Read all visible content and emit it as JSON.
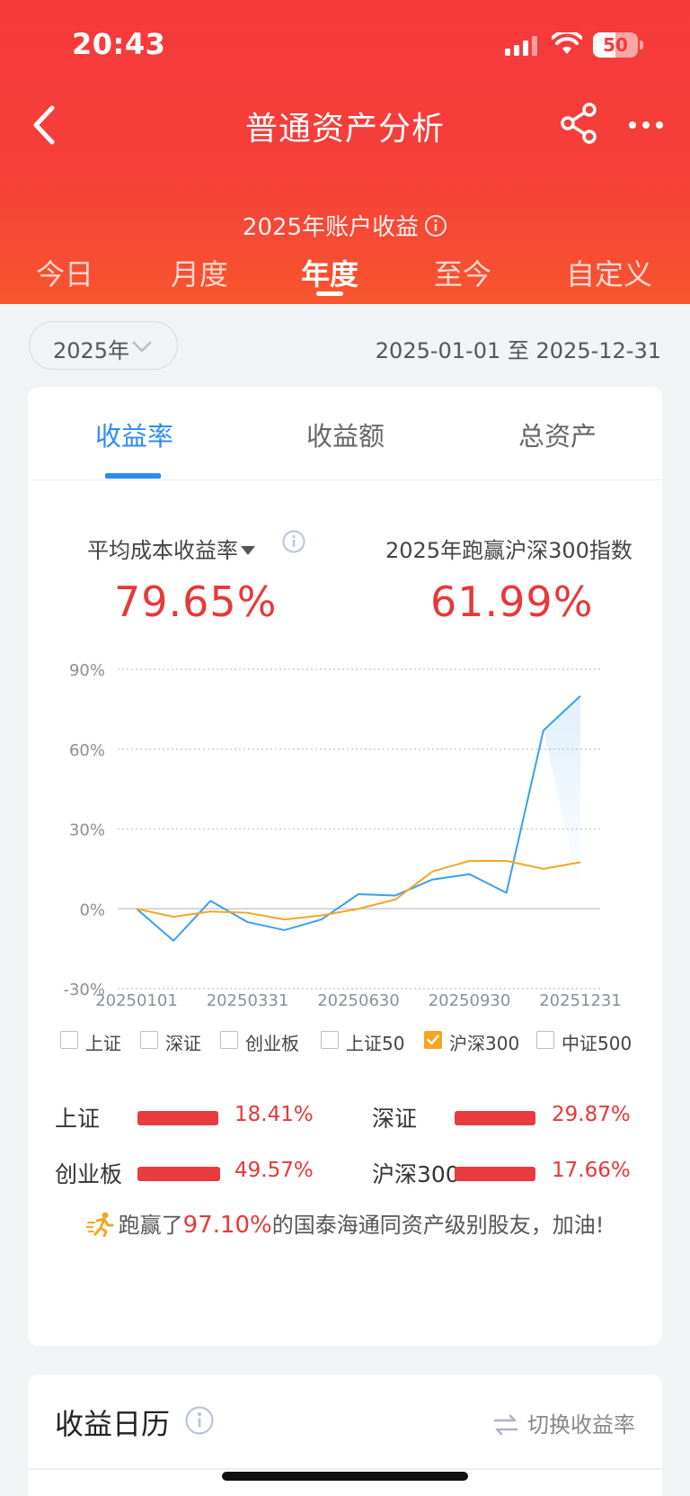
{
  "status_bar": {
    "time": "20:43",
    "battery": "50",
    "battery_level": 0.5
  },
  "nav": {
    "title": "普通资产分析"
  },
  "header": {
    "subtitle": "2025年账户收益",
    "period_tabs": [
      {
        "label": "今日",
        "active": false
      },
      {
        "label": "月度",
        "active": false
      },
      {
        "label": "年度",
        "active": true
      },
      {
        "label": "至今",
        "active": false
      },
      {
        "label": "自定义",
        "active": false
      }
    ]
  },
  "filter": {
    "year": "2025年",
    "date_range": "2025-01-01 至 2025-12-31"
  },
  "card": {
    "metric_tabs": [
      {
        "label": "收益率",
        "active": true
      },
      {
        "label": "收益额",
        "active": false
      },
      {
        "label": "总资产",
        "active": false
      }
    ],
    "stat_left_label": "平均成本收益率",
    "stat_left_value": "79.65%",
    "stat_right_label": "2025年跑赢沪深300指数",
    "stat_right_value": "61.99%"
  },
  "chart_data": {
    "type": "line",
    "x": [
      "20250101",
      "20250201",
      "20250301",
      "20250331",
      "20250501",
      "20250601",
      "20250630",
      "20250801",
      "20250901",
      "20250930",
      "20251101",
      "20251201",
      "20251231"
    ],
    "x_tick_labels": [
      "20250101",
      "20250331",
      "20250630",
      "20250930",
      "20251231"
    ],
    "y_tick_labels": [
      "90%",
      "60%",
      "30%",
      "0%",
      "-30%"
    ],
    "ylim": [
      -30,
      90
    ],
    "y_ticks": [
      90,
      60,
      30,
      0,
      -30
    ],
    "grid": true,
    "series": [
      {
        "color": "#3aa0e8",
        "values": [
          0,
          -12,
          3,
          -5,
          -8,
          -4,
          5.5,
          5.0,
          11,
          13,
          6,
          67,
          80
        ]
      },
      {
        "color": "#f5a623",
        "values": [
          0,
          -3,
          -1,
          -1.5,
          -4,
          -2.5,
          0,
          3.5,
          14,
          18,
          18,
          15,
          17.5
        ]
      }
    ]
  },
  "legend": [
    {
      "label": "上证",
      "checked": false
    },
    {
      "label": "深证",
      "checked": false
    },
    {
      "label": "创业板",
      "checked": false
    },
    {
      "label": "上证50",
      "checked": false
    },
    {
      "label": "沪深300",
      "checked": true
    },
    {
      "label": "中证500",
      "checked": false
    }
  ],
  "index_returns": [
    {
      "name": "上证",
      "value": "18.41%"
    },
    {
      "name": "深证",
      "value": "29.87%"
    },
    {
      "name": "创业板",
      "value": "49.57%"
    },
    {
      "name": "沪深300",
      "value": "17.66%"
    }
  ],
  "beat": {
    "prefix": "跑赢了",
    "percent": "97.10%",
    "suffix": "的国泰海通同资产级别股友，加油!"
  },
  "calendar": {
    "title": "收益日历",
    "switch_label": "切换收益率"
  },
  "colors": {
    "brand_red": "#f53a3b",
    "accent_blue": "#2d8cf0",
    "value_red": "#e83838",
    "hs300_orange": "#f5a623"
  }
}
